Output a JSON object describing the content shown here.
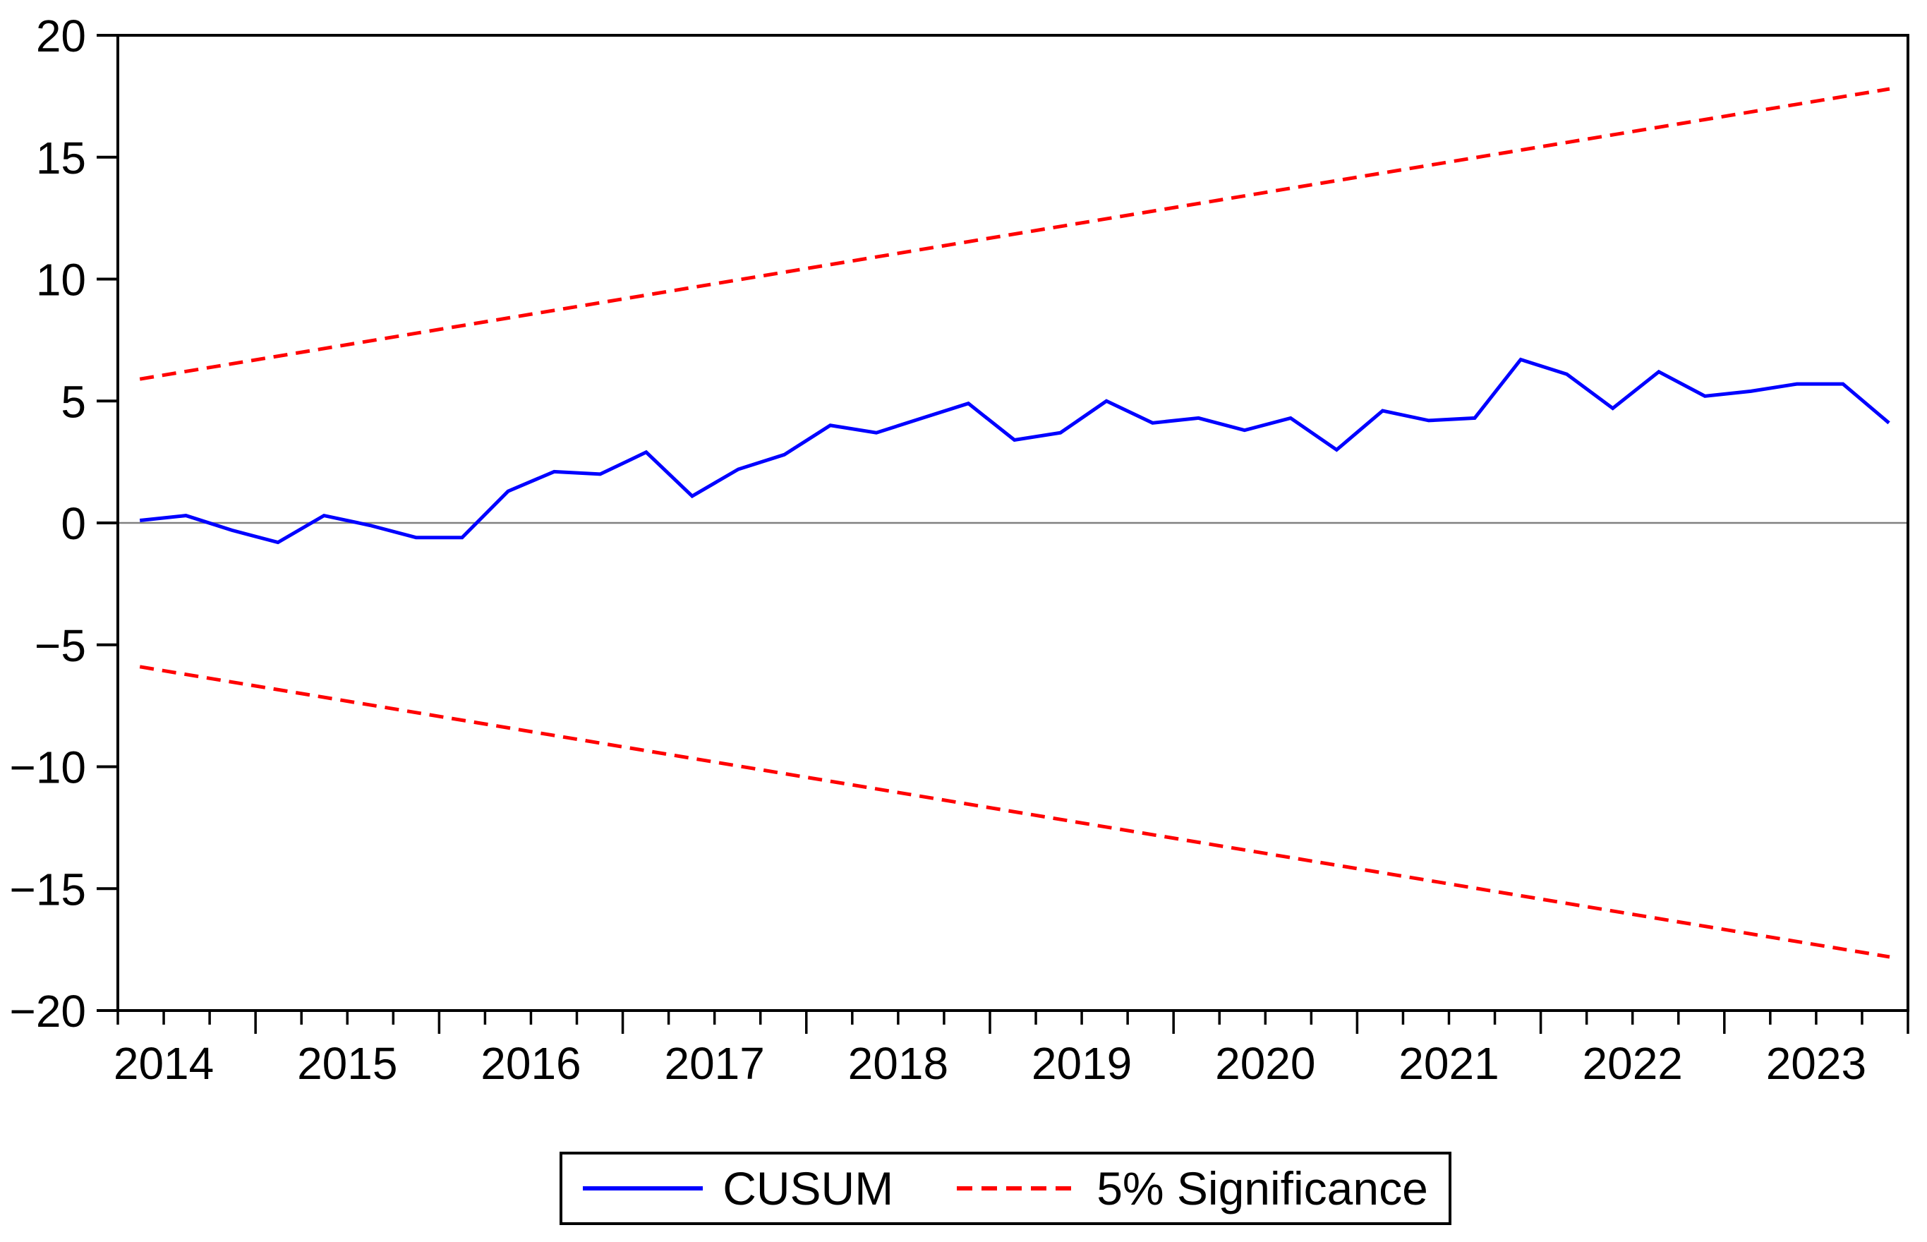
{
  "chart_data": {
    "type": "line",
    "title": "",
    "description": "CUSUM recursive-residual stability test plot with 5% significance bounds",
    "x_axis": {
      "range": [
        2014.25,
        2024.0
      ],
      "tick_labels": [
        "2014",
        "2015",
        "2016",
        "2017",
        "2018",
        "2019",
        "2020",
        "2021",
        "2022",
        "2023"
      ],
      "minor_tick_interval_years": 0.25,
      "grid": false
    },
    "y_axis": {
      "range": [
        -20,
        20
      ],
      "tick_interval": 5,
      "tick_labels": [
        "20",
        "15",
        "10",
        "5",
        "0",
        "−5",
        "−10",
        "−15",
        "−20"
      ],
      "grid": false
    },
    "zero_line": {
      "value": 0,
      "color": "#808080"
    },
    "series": [
      {
        "name": "CUSUM",
        "color": "#0000ff",
        "style": "solid",
        "x_start_year": 2014.37,
        "x_step_years": 0.2507,
        "periods": [
          "2014Q2",
          "2014Q3",
          "2014Q4",
          "2015Q1",
          "2015Q2",
          "2015Q3",
          "2015Q4",
          "2016Q1",
          "2016Q2",
          "2016Q3",
          "2016Q4",
          "2017Q1",
          "2017Q2",
          "2017Q3",
          "2017Q4",
          "2018Q1",
          "2018Q2",
          "2018Q3",
          "2018Q4",
          "2019Q1",
          "2019Q2",
          "2019Q3",
          "2019Q4",
          "2020Q1",
          "2020Q2",
          "2020Q3",
          "2020Q4",
          "2021Q1",
          "2021Q2",
          "2021Q3",
          "2021Q4",
          "2022Q1",
          "2022Q2",
          "2022Q3",
          "2022Q4",
          "2023Q1",
          "2023Q2",
          "2023Q3",
          "2023Q4"
        ],
        "values": [
          0.1,
          0.3,
          -0.3,
          -0.8,
          0.3,
          -0.1,
          -0.6,
          -0.6,
          1.3,
          2.1,
          2.0,
          2.9,
          1.1,
          2.2,
          2.8,
          4.0,
          3.7,
          4.3,
          4.9,
          3.4,
          3.7,
          5.0,
          4.1,
          4.3,
          3.8,
          4.3,
          3.0,
          4.6,
          4.2,
          4.3,
          6.7,
          6.1,
          4.7,
          6.2,
          5.2,
          5.4,
          5.7,
          5.7,
          4.1
        ]
      },
      {
        "name": "5% Significance (upper bound)",
        "color": "#ff0000",
        "style": "dashed",
        "x": [
          2014.37,
          2023.9
        ],
        "values": [
          5.9,
          17.8
        ]
      },
      {
        "name": "5% Significance (lower bound)",
        "color": "#ff0000",
        "style": "dashed",
        "x": [
          2014.37,
          2023.9
        ],
        "values": [
          -5.9,
          -17.8
        ]
      }
    ],
    "legend": {
      "position": "bottom-center",
      "items": [
        {
          "label": "CUSUM",
          "color": "#0000ff",
          "line_style": "solid"
        },
        {
          "label": "5% Significance",
          "color": "#ff0000",
          "line_style": "dashed"
        }
      ]
    }
  }
}
